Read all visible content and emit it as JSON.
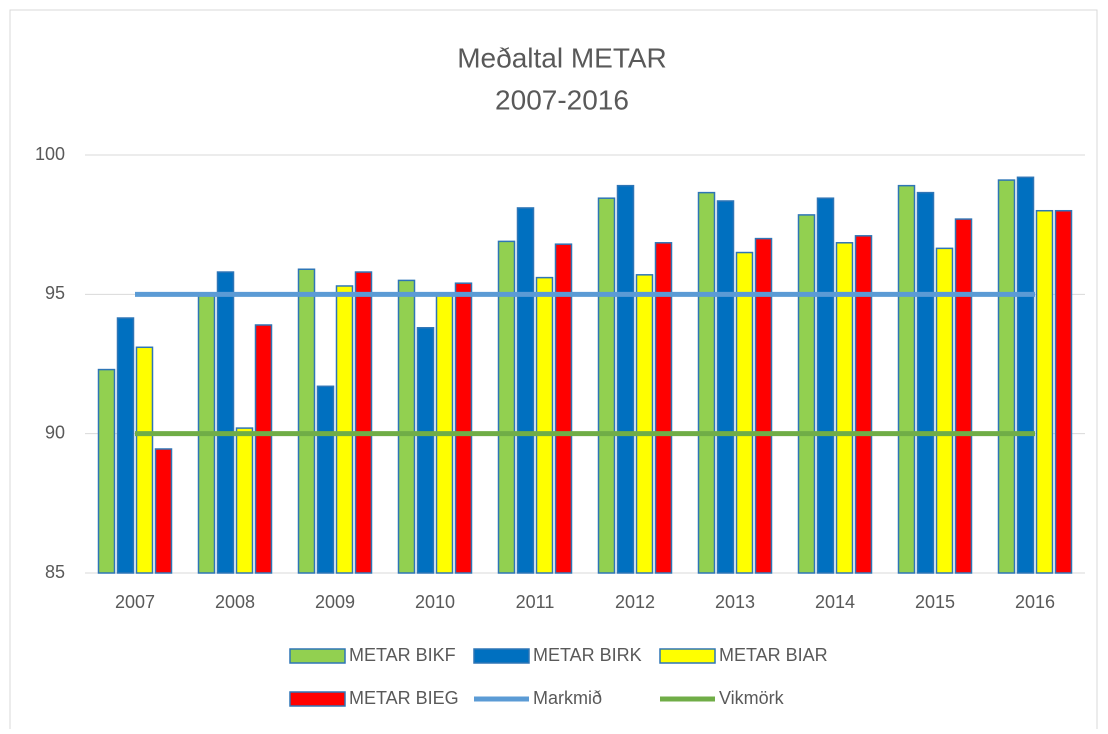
{
  "chart_data": {
    "type": "bar",
    "title": [
      "Meðaltal METAR",
      "2007-2016"
    ],
    "categories": [
      "2007",
      "2008",
      "2009",
      "2010",
      "2011",
      "2012",
      "2013",
      "2014",
      "2015",
      "2016"
    ],
    "series": [
      {
        "name": "METAR BIKF",
        "color": "#92d050",
        "values": [
          92.3,
          95.0,
          95.9,
          95.5,
          96.9,
          98.45,
          98.65,
          97.85,
          98.9,
          99.1
        ]
      },
      {
        "name": "METAR BIRK",
        "color": "#0070c0",
        "values": [
          94.15,
          95.8,
          91.7,
          93.8,
          98.1,
          98.9,
          98.35,
          98.45,
          98.65,
          99.2
        ]
      },
      {
        "name": "METAR BIAR",
        "color": "#ffff00",
        "values": [
          93.1,
          90.2,
          95.3,
          95.0,
          95.6,
          95.7,
          96.5,
          96.85,
          96.65,
          98.0
        ]
      },
      {
        "name": "METAR BIEG",
        "color": "#ff0000",
        "values": [
          89.45,
          93.9,
          95.8,
          95.4,
          96.8,
          96.85,
          97.0,
          97.1,
          97.7,
          98.0
        ]
      },
      {
        "name": "Markmið",
        "type": "line",
        "color": "#5b9bd5",
        "values": [
          95,
          95,
          95,
          95,
          95,
          95,
          95,
          95,
          95,
          95
        ]
      },
      {
        "name": "Vikmörk",
        "type": "line",
        "color": "#70ad47",
        "values": [
          90,
          90,
          90,
          90,
          90,
          90,
          90,
          90,
          90,
          90
        ]
      }
    ],
    "ylim": [
      85,
      100
    ],
    "yticks": [
      85,
      90,
      95,
      100
    ],
    "grid": true,
    "legend": "bottom"
  }
}
